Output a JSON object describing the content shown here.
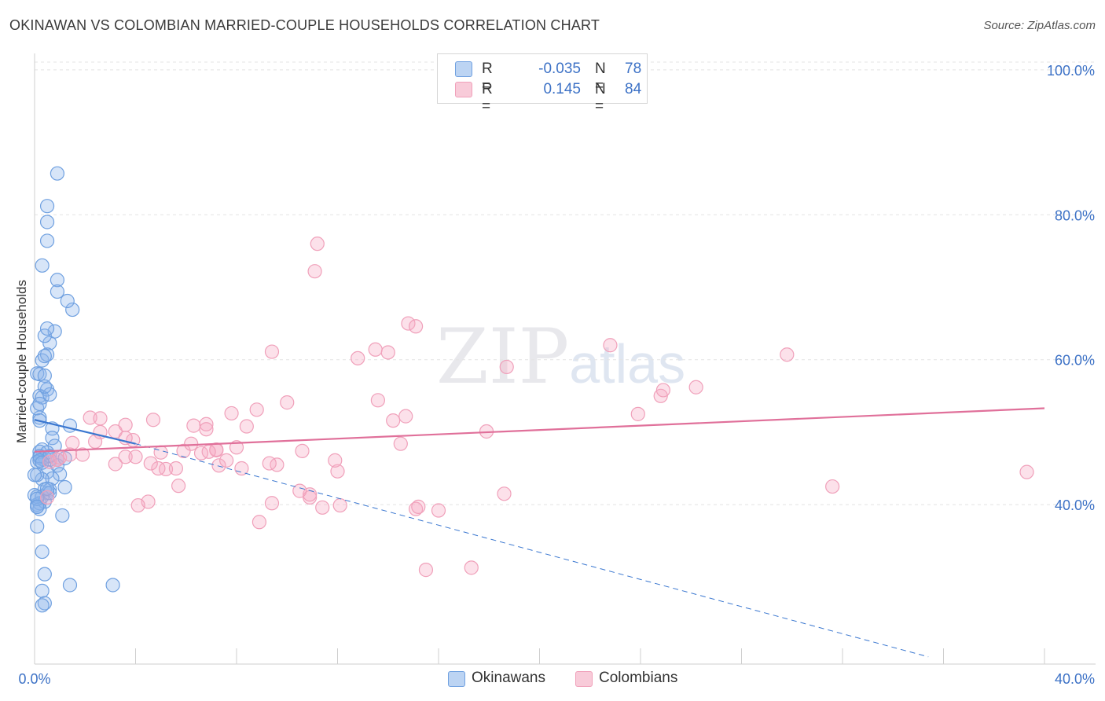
{
  "title": "OKINAWAN VS COLOMBIAN MARRIED-COUPLE HOUSEHOLDS CORRELATION CHART",
  "source": "Source: ZipAtlas.com",
  "watermark": {
    "zip": "ZIP",
    "atlas": "atlas"
  },
  "colors": {
    "blue": "#6fa0e0",
    "blue_line": "#3a77d0",
    "pink": "#f0a0ba",
    "pink_line": "#e0709a",
    "tick_text": "#3d72c6"
  },
  "legend": {
    "rows": [
      {
        "r_label": "R =",
        "r_value": "-0.035",
        "n_label": "N =",
        "n_value": "78",
        "color": "#6fa0e0"
      },
      {
        "r_label": "R =",
        "r_value": "0.145",
        "n_label": "N =",
        "n_value": "84",
        "color": "#f0a0ba"
      }
    ]
  },
  "bottom_legend": [
    {
      "label": "Okinawans",
      "color": "#6fa0e0"
    },
    {
      "label": "Colombians",
      "color": "#f0a0ba"
    }
  ],
  "chart_data": {
    "type": "scatter",
    "title": "OKINAWAN VS COLOMBIAN MARRIED-COUPLE HOUSEHOLDS CORRELATION CHART",
    "xlabel": "",
    "ylabel": "Married-couple Households",
    "xlim": [
      0,
      40
    ],
    "ylim": [
      18,
      101.5
    ],
    "x_tick_labels": [
      "0.0%",
      "40.0%"
    ],
    "y_ticks": [
      40,
      60,
      80,
      100
    ],
    "y_tick_labels": [
      "40.0%",
      "60.0%",
      "80.0%",
      "100.0%"
    ],
    "grid": true,
    "legend_position": "top-center",
    "series": [
      {
        "name": "Okinawans",
        "color": "#6fa0e0",
        "x": [
          0.9,
          0.5,
          0.5,
          0.5,
          0.9,
          0.3,
          0.9,
          0.3,
          1.5,
          0.6,
          0.8,
          0.4,
          0.5,
          1.3,
          0.5,
          0.1,
          0.4,
          0.2,
          0.2,
          0.2,
          0.5,
          0.4,
          0.7,
          0.3,
          0.6,
          0.7,
          0.1,
          0.2,
          1.4,
          0.8,
          0.3,
          0.3,
          0.4,
          0.6,
          0.2,
          0.9,
          0.5,
          1.0,
          0.7,
          0.6,
          0.5,
          0.3,
          0.1,
          0.4,
          0.0,
          0.1,
          0.2,
          0.3,
          0.4,
          0.2,
          0.1,
          0.1,
          1.1,
          0.3,
          0.4,
          1.4,
          0.3,
          0.4,
          0.3,
          0.2,
          0.5,
          0.1,
          0.2,
          0.0,
          0.2,
          1.2,
          0.1,
          0.6,
          0.6,
          0.1,
          0.1,
          3.1,
          0.9,
          0.2,
          1.2,
          0.3,
          0.4,
          0.5
        ],
        "y": [
          85.7,
          81.2,
          79.0,
          76.4,
          71.0,
          73.0,
          69.4,
          59.9,
          66.9,
          62.3,
          63.9,
          63.3,
          64.3,
          68.1,
          60.7,
          58.1,
          60.5,
          58.0,
          55.0,
          52.0,
          55.9,
          57.8,
          50.5,
          54.8,
          55.2,
          49.2,
          53.3,
          51.6,
          50.9,
          48.1,
          46.3,
          47.6,
          46.5,
          46.2,
          47.3,
          45.4,
          44.5,
          44.2,
          43.6,
          42.1,
          41.6,
          43.5,
          44.1,
          42.1,
          41.3,
          40.0,
          40.2,
          41.1,
          40.4,
          39.4,
          39.7,
          37.0,
          38.5,
          33.5,
          30.4,
          28.9,
          28.1,
          26.4,
          26.1,
          46.5,
          47.2,
          45.9,
          46.7,
          44.1,
          46.1,
          42.4,
          41.1,
          46.7,
          41.6,
          40.8,
          39.7,
          28.9,
          46.2,
          53.9,
          46.4,
          45.8,
          56.3,
          42.2
        ]
      },
      {
        "name": "Colombians",
        "color": "#f0a0ba",
        "x": [
          11.2,
          11.1,
          13.5,
          14.8,
          15.1,
          18.7,
          14.0,
          12.8,
          9.4,
          8.8,
          10.0,
          14.2,
          13.6,
          14.5,
          14.7,
          17.9,
          22.8,
          23.9,
          29.8,
          26.2,
          24.8,
          7.8,
          6.8,
          4.7,
          3.6,
          8.0,
          3.9,
          3.2,
          2.6,
          2.4,
          3.6,
          2.2,
          4.0,
          5.0,
          6.6,
          7.2,
          7.2,
          7.3,
          8.2,
          9.6,
          9.3,
          10.6,
          10.9,
          10.9,
          10.5,
          12.1,
          11.4,
          15.1,
          15.2,
          16.0,
          17.3,
          18.6,
          24.9,
          31.6,
          15.5,
          12.0,
          11.9,
          9.4,
          8.9,
          7.6,
          5.9,
          6.2,
          6.8,
          6.3,
          5.7,
          5.2,
          4.9,
          4.6,
          4.5,
          4.1,
          3.2,
          1.5,
          0.9,
          0.5,
          0.6,
          1.0,
          1.9,
          1.4,
          3.6,
          2.6,
          5.6,
          6.9,
          8.4,
          39.3
        ],
        "y": [
          76.0,
          72.2,
          61.4,
          65.0,
          64.6,
          59.0,
          61.0,
          60.2,
          61.1,
          53.1,
          54.1,
          51.6,
          54.4,
          48.4,
          52.2,
          50.1,
          62.0,
          52.5,
          60.7,
          56.2,
          55.0,
          52.6,
          51.1,
          51.7,
          51.0,
          47.9,
          48.9,
          50.1,
          50.0,
          48.7,
          46.6,
          52.0,
          46.6,
          47.2,
          47.1,
          47.6,
          47.5,
          45.4,
          45.0,
          45.5,
          45.7,
          47.4,
          41.0,
          41.4,
          41.9,
          39.9,
          39.6,
          39.4,
          39.7,
          39.2,
          31.3,
          41.5,
          55.8,
          42.5,
          31.0,
          44.6,
          46.1,
          40.2,
          37.6,
          46.1,
          47.4,
          48.4,
          50.4,
          50.9,
          42.6,
          44.9,
          45.0,
          45.7,
          40.4,
          39.9,
          45.6,
          48.5,
          46.2,
          41.0,
          45.9,
          46.5,
          46.9,
          46.9,
          49.2,
          51.9,
          45.0,
          47.3,
          50.8,
          44.5
        ]
      }
    ],
    "trend_lines": [
      {
        "series": "Okinawans",
        "x": [
          0,
          4.0
        ],
        "y": [
          51.7,
          48.4
        ],
        "style": "solid"
      },
      {
        "series": "Okinawans",
        "x": [
          4.0,
          35.4
        ],
        "y": [
          48.4,
          19.0
        ],
        "style": "dashed"
      },
      {
        "series": "Colombians",
        "x": [
          0,
          40
        ],
        "y": [
          47.3,
          53.3
        ],
        "style": "solid"
      }
    ]
  }
}
